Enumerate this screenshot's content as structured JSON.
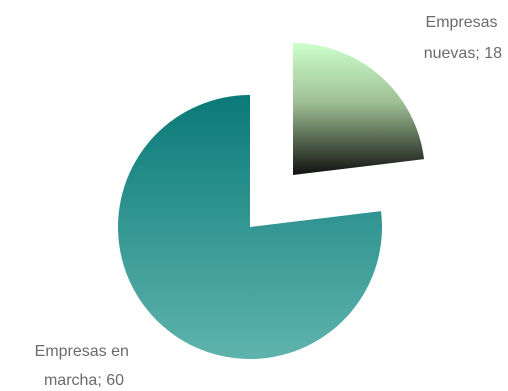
{
  "chart_data": {
    "type": "pie",
    "exploded": true,
    "slices": [
      {
        "label_line1": "Empresas",
        "label_line2": "nuevas; 18",
        "category": "Empresas nuevas",
        "value": 18,
        "gradient": [
          "#ccffcc",
          "#111111"
        ]
      },
      {
        "label_line1": "Empresas en",
        "label_line2": "marcha; 60",
        "category": "Empresas en marcha",
        "value": 60,
        "gradient": [
          "#0a7a78",
          "#5fb3ad"
        ]
      }
    ]
  }
}
